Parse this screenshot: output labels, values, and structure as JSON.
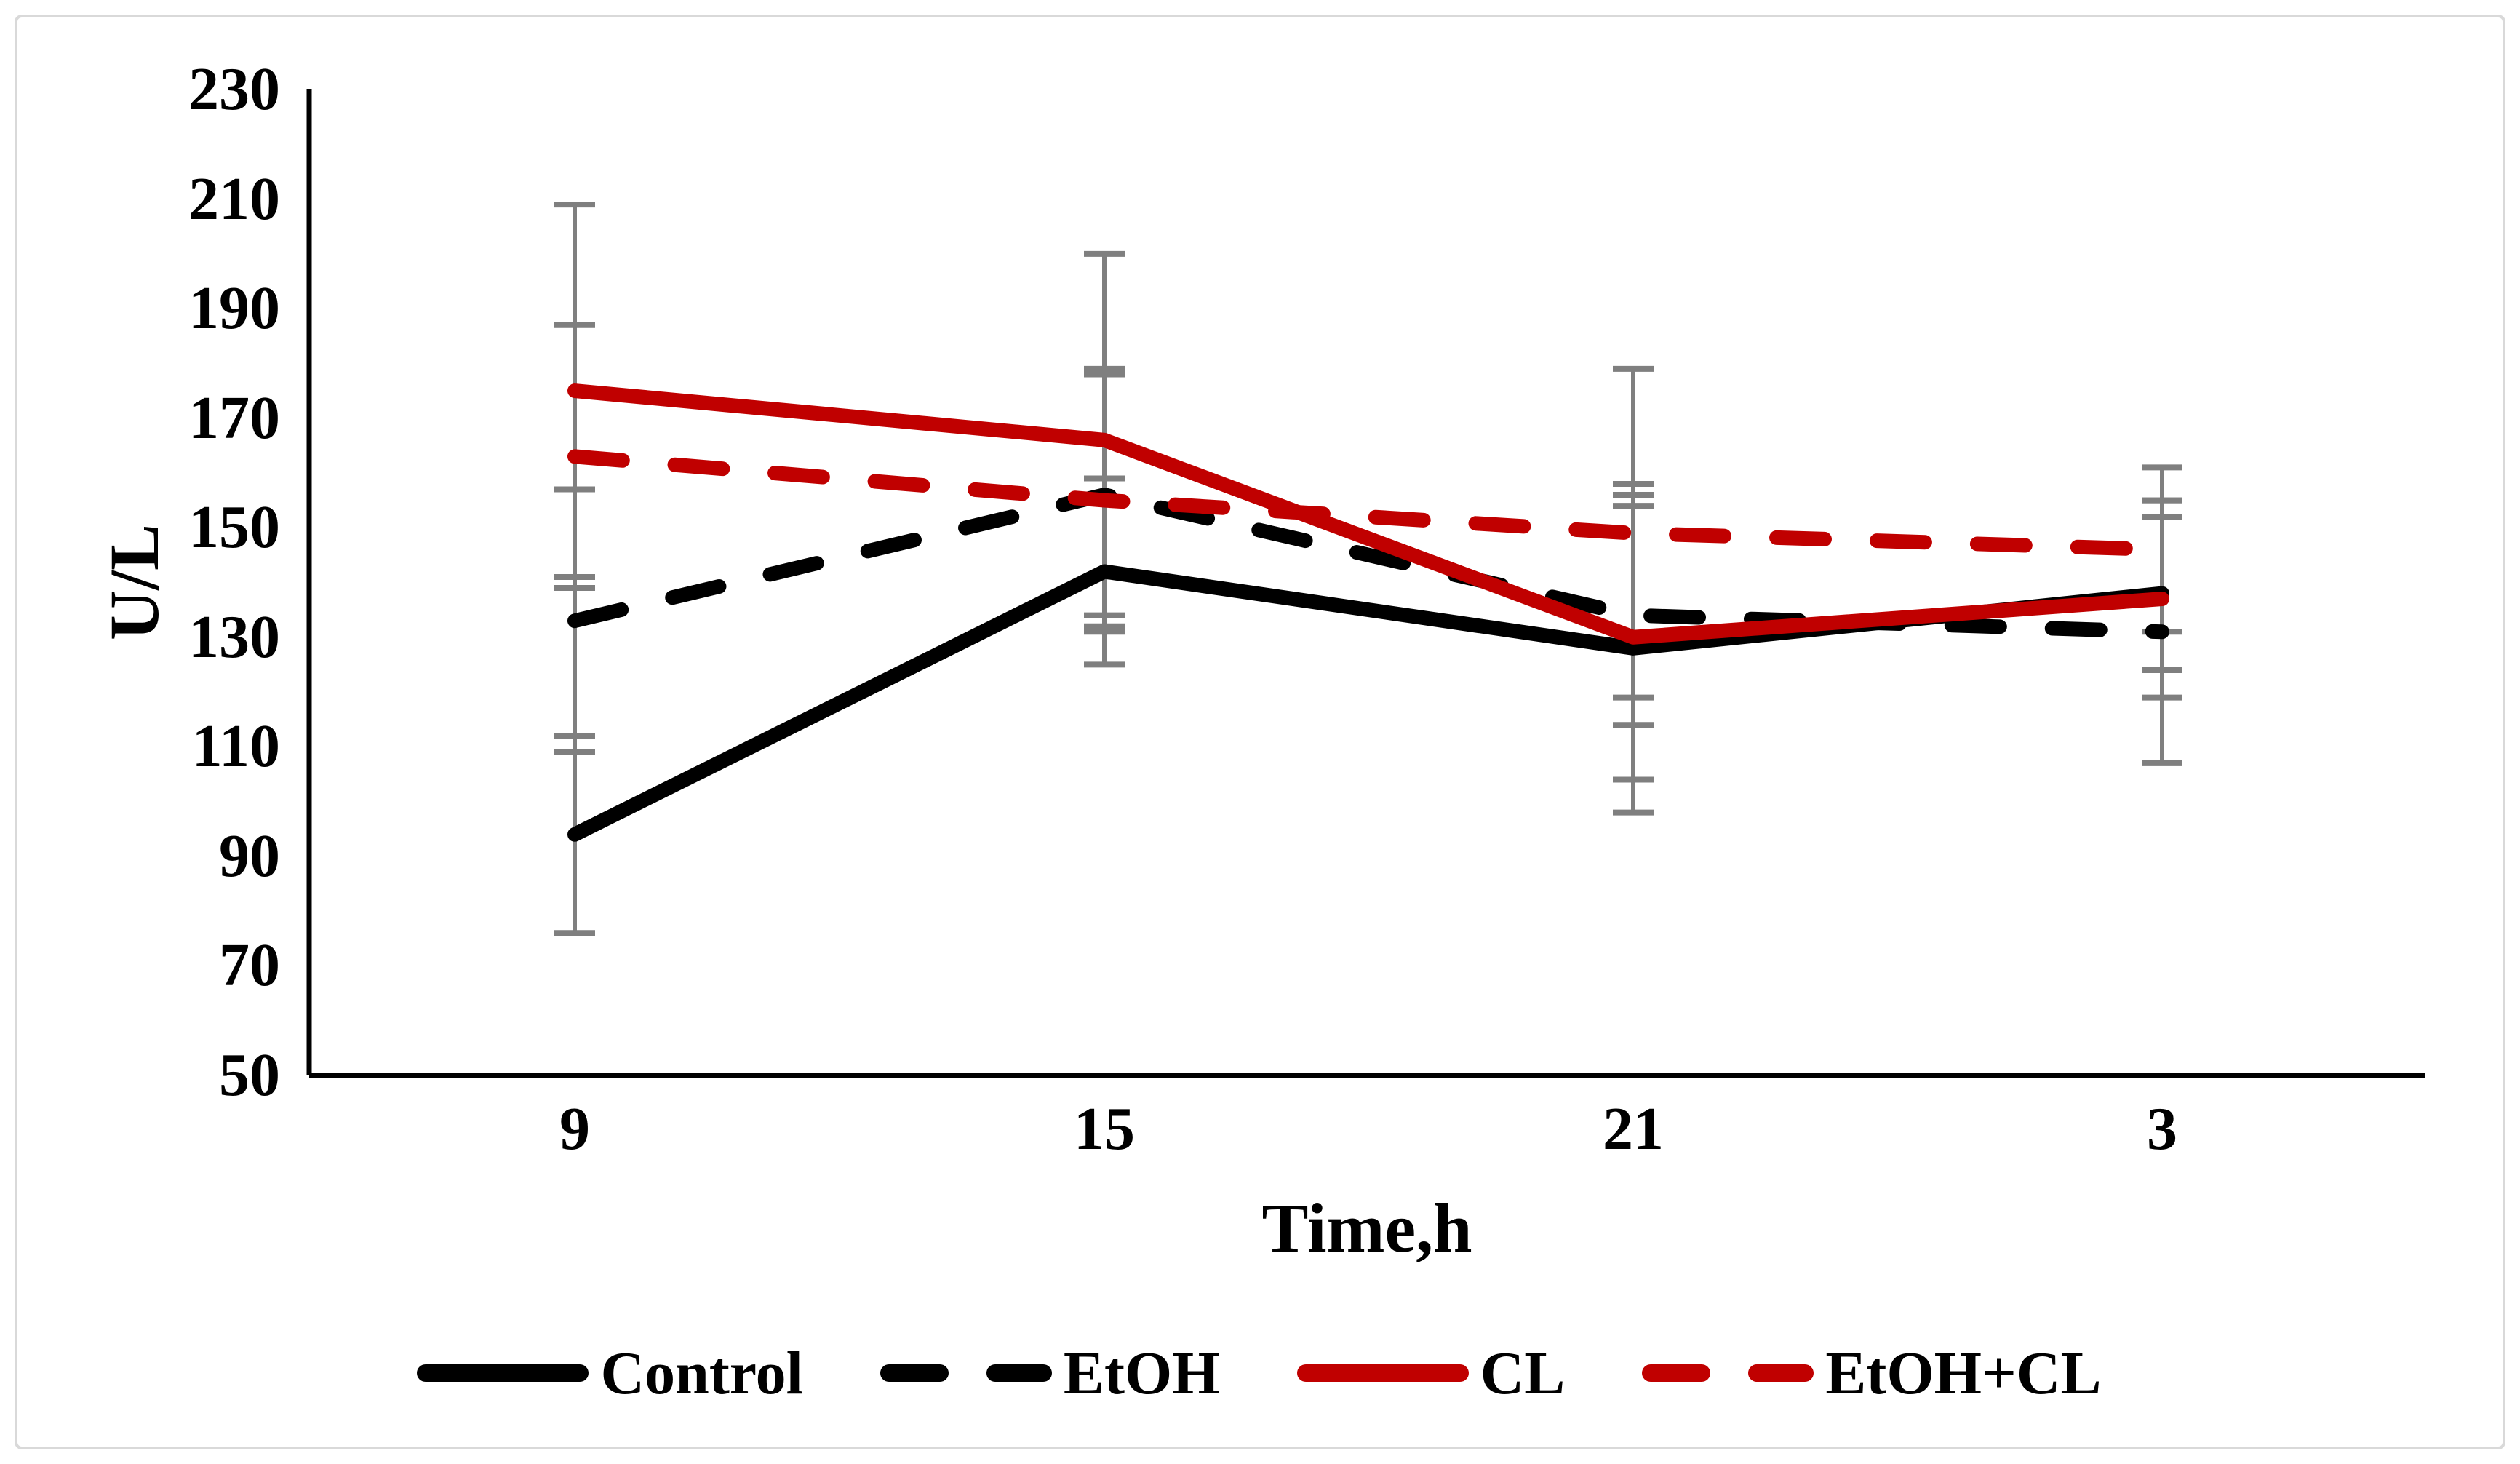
{
  "chart_data": {
    "type": "line",
    "title": "",
    "ylabel": "U/L",
    "xlabel": "Time,h",
    "categories": [
      "9",
      "15",
      "21",
      "3"
    ],
    "yticks": [
      "230",
      "210",
      "190",
      "170",
      "150",
      "130",
      "110",
      "90",
      "70",
      "50"
    ],
    "ylim": [
      50,
      230
    ],
    "ytick_step": 20,
    "grid": false,
    "legend_position": "bottom",
    "error_bar_color": "#7F7F7F",
    "axis_color": "#000000",
    "frame_border_color": "#D9D9D9",
    "series": [
      {
        "name": "Control",
        "color": "#000000",
        "style": "solid",
        "values": [
          94,
          142,
          128,
          138
        ],
        "errors": [
          18,
          17,
          30,
          14
        ]
      },
      {
        "name": "EtOH",
        "color": "#000000",
        "style": "dashed",
        "values": [
          133,
          156,
          134,
          131
        ],
        "errors": [
          24,
          22,
          20,
          24
        ]
      },
      {
        "name": "CL",
        "color": "#C00000",
        "style": "solid",
        "values": [
          175,
          166,
          130,
          137
        ],
        "errors": [
          34,
          34,
          26,
          18
        ]
      },
      {
        "name": "EtOH+CL",
        "color": "#C00000",
        "style": "dashed",
        "values": [
          163,
          155,
          149,
          146
        ],
        "errors": [
          24,
          24,
          30,
          15
        ]
      }
    ]
  }
}
